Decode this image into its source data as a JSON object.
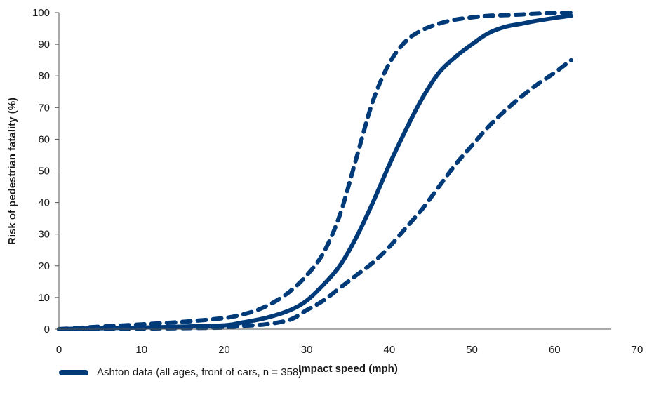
{
  "chart_data": {
    "type": "line",
    "xlabel": "Impact speed (mph)",
    "ylabel": "Risk of pedestrian fatality (%)",
    "xlim": [
      0,
      70
    ],
    "ylim": [
      0,
      100
    ],
    "xticks": [
      0,
      10,
      20,
      30,
      40,
      50,
      60,
      70
    ],
    "yticks": [
      0,
      10,
      20,
      30,
      40,
      50,
      60,
      70,
      80,
      90,
      100
    ],
    "grid": false,
    "legend_position": "bottom-left",
    "color": "#003A78",
    "series": [
      {
        "name": "Ashton data (all ages, front of cars, n = 358)",
        "style": "solid",
        "x": [
          0,
          5,
          10,
          15,
          20,
          22,
          25,
          28,
          30,
          32,
          34,
          36,
          38,
          40,
          42,
          44,
          46,
          48,
          50,
          52,
          54,
          56,
          58,
          60,
          62
        ],
        "y": [
          0,
          0.3,
          0.5,
          0.8,
          1.2,
          2,
          3.5,
          6,
          9,
          14,
          20,
          29,
          40,
          52,
          63,
          73,
          81,
          86,
          90,
          93.5,
          95.5,
          96.5,
          97.5,
          98.3,
          99
        ]
      },
      {
        "style": "dashed",
        "x": [
          0,
          5,
          10,
          15,
          20,
          22,
          24,
          26,
          28,
          30,
          32,
          34,
          36,
          38,
          40,
          42,
          44,
          46,
          48,
          50,
          52,
          55,
          58,
          60,
          62
        ],
        "y": [
          0,
          0.8,
          1.5,
          2.3,
          3.5,
          4.5,
          6,
          8.5,
          12,
          17,
          24,
          36,
          54,
          72,
          84,
          91,
          94.5,
          96.5,
          97.8,
          98.5,
          99,
          99.3,
          99.7,
          99.9,
          100
        ]
      },
      {
        "style": "dashed",
        "x": [
          0,
          5,
          10,
          15,
          20,
          22,
          25,
          28,
          30,
          32,
          34,
          36,
          38,
          40,
          42,
          44,
          46,
          48,
          50,
          52,
          54,
          56,
          58,
          60,
          62
        ],
        "y": [
          0,
          0.1,
          0.2,
          0.3,
          0.5,
          1,
          1.5,
          3,
          6,
          9,
          13,
          17,
          21,
          26,
          32,
          38,
          45,
          52,
          58,
          64,
          69,
          73.5,
          77.5,
          81,
          85
        ]
      }
    ]
  }
}
